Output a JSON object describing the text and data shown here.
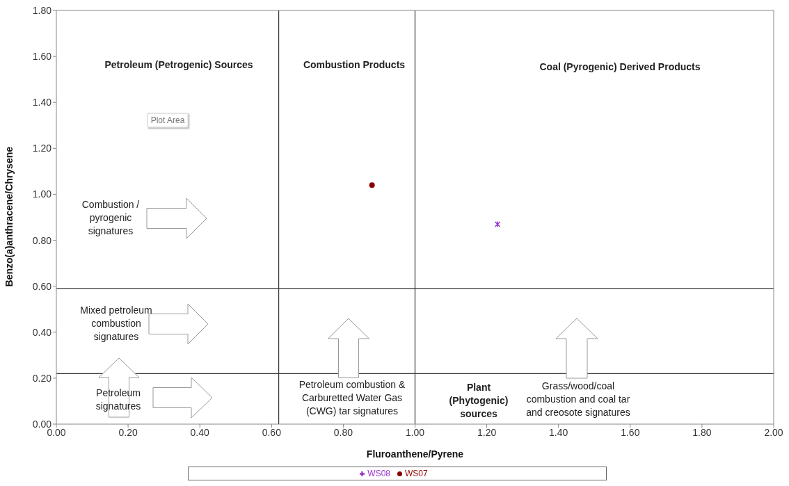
{
  "chart_data": {
    "type": "scatter",
    "xlabel": "Fluroanthene/Pyrene",
    "ylabel": "Benzo(a)anthracene/Chrysene",
    "series": [
      {
        "name": "WS08",
        "color": "#9933cc",
        "marker": "cross",
        "x": [
          1.23
        ],
        "values": [
          0.87
        ]
      },
      {
        "name": "WS07",
        "color": "#8b0000",
        "marker": "circle",
        "x": [
          0.88
        ],
        "values": [
          1.04
        ]
      }
    ],
    "xlim": [
      0,
      2
    ],
    "xticks": [
      {
        "value": 0,
        "label": "0.00"
      },
      {
        "value": 0.2,
        "label": "0.20"
      },
      {
        "value": 0.4,
        "label": "0.40"
      },
      {
        "value": 0.6,
        "label": "0.60"
      },
      {
        "value": 0.8,
        "label": "0.80"
      },
      {
        "value": 1,
        "label": "1.00"
      },
      {
        "value": 1.2,
        "label": "1.20"
      },
      {
        "value": 1.4,
        "label": "1.40"
      },
      {
        "value": 1.6,
        "label": "1.60"
      },
      {
        "value": 1.8,
        "label": "1.80"
      },
      {
        "value": 2,
        "label": "2.00"
      }
    ],
    "ylim": [
      0,
      1.8
    ],
    "yticks": [
      {
        "value": 0,
        "label": "0.00"
      },
      {
        "value": 0.2,
        "label": "0.20"
      },
      {
        "value": 0.4,
        "label": "0.40"
      },
      {
        "value": 0.6,
        "label": "0.60"
      },
      {
        "value": 0.8,
        "label": "0.80"
      },
      {
        "value": 1,
        "label": "1.00"
      },
      {
        "value": 1.2,
        "label": "1.20"
      },
      {
        "value": 1.4,
        "label": "1.40"
      },
      {
        "value": 1.6,
        "label": "1.60"
      },
      {
        "value": 1.8,
        "label": "1.80"
      }
    ],
    "ref_lines": [
      {
        "axis": "x",
        "value": 0.62,
        "color": "#333333"
      },
      {
        "axis": "x",
        "value": 1.0,
        "color": "#333333"
      },
      {
        "axis": "y",
        "value": 0.59,
        "color": "#333333"
      },
      {
        "axis": "y",
        "value": 0.22,
        "color": "#333333"
      }
    ],
    "annotations": [
      "Petroleum (Petrogenic) Sources",
      "Combustion Products",
      "Coal (Pyrogenic) Derived Products",
      "Plot Area",
      "Combustion /\npyrogenic\nsignatures",
      "Mixed petroleum\ncombustion\nsignatures",
      "Petroleum\nsignatures",
      "Petroleum combustion &\nCarburetted Water Gas\n(CWG) tar signatures",
      "Plant\n(Phytogenic)\nsources",
      "Grass/wood/coal\ncombustion and coal tar\nand creosote signatures"
    ],
    "grid": false,
    "legend": "bottom"
  }
}
